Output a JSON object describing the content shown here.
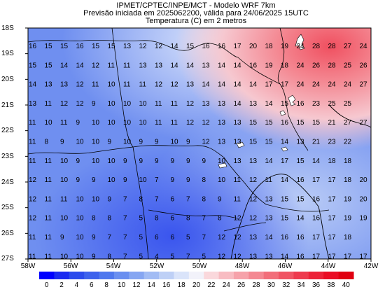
{
  "header": {
    "line1": "IPMET/CPTEC/INPE/MCT - Modelo WRF 7km",
    "line2": "Previsão iniciada em 2025062200, válida para 24/06/2025 15UTC",
    "line3": "Temperatura (C) em 2 metros"
  },
  "axes": {
    "lat_labels": [
      "18S",
      "19S",
      "20S",
      "21S",
      "22S",
      "23S",
      "24S",
      "25S",
      "26S",
      "27S"
    ],
    "lon_labels": [
      "58W",
      "56W",
      "54W",
      "52W",
      "50W",
      "48W",
      "46W",
      "44W",
      "42W"
    ]
  },
  "colorbar": {
    "ticks": [
      "0",
      "2",
      "4",
      "6",
      "8",
      "10",
      "12",
      "14",
      "16",
      "18",
      "20",
      "22",
      "24",
      "26",
      "28",
      "30",
      "32",
      "34",
      "36",
      "38",
      "40"
    ],
    "colors": [
      "#0000ff",
      "#1a2af0",
      "#2b4bec",
      "#3d62ec",
      "#4f78ee",
      "#6a8ff0",
      "#86a6f2",
      "#a2bcf4",
      "#bed0f6",
      "#dae4fa",
      "#f2f2fa",
      "#fad8dc",
      "#f8bcc2",
      "#f6a2aa",
      "#f48892",
      "#f26e7a",
      "#f05464",
      "#ee3a4e",
      "#ec2238",
      "#ea0c24",
      "#e00010"
    ]
  },
  "grid_values": [
    [
      "16",
      "15",
      "15",
      "16",
      "15",
      "15",
      "13",
      "12",
      "12",
      "14",
      "15",
      "16",
      "16",
      "17",
      "20",
      "18",
      "19",
      "24",
      "28",
      "28",
      "27",
      "24"
    ],
    [
      "15",
      "15",
      "14",
      "14",
      "12",
      "11",
      "11",
      "13",
      "13",
      "14",
      "14",
      "13",
      "14",
      "14",
      "16",
      "19",
      "18",
      "24",
      "26",
      "28",
      "25",
      "26"
    ],
    [
      "14",
      "13",
      "13",
      "12",
      "11",
      "10",
      "11",
      "11",
      "12",
      "12",
      "13",
      "14",
      "14",
      "14",
      "14",
      "17",
      "17",
      "24",
      "24",
      "24",
      "24",
      "27"
    ],
    [
      "13",
      "11",
      "12",
      "12",
      "9",
      "10",
      "10",
      "10",
      "11",
      "11",
      "12",
      "13",
      "13",
      "14",
      "13",
      "14",
      "15",
      "16",
      "23",
      "25",
      "25"
    ],
    [
      "11",
      "10",
      "11",
      "9",
      "10",
      "10",
      "10",
      "10",
      "11",
      "11",
      "12",
      "12",
      "13",
      "13",
      "15",
      "15",
      "16",
      "15",
      "15",
      "21",
      "27",
      "27"
    ],
    [
      "11",
      "8",
      "9",
      "10",
      "10",
      "9",
      "10",
      "9",
      "9",
      "10",
      "9",
      "12",
      "13",
      "13",
      "15",
      "15",
      "14",
      "13",
      "21",
      "23",
      "22"
    ],
    [
      "11",
      "11",
      "10",
      "9",
      "10",
      "10",
      "9",
      "9",
      "9",
      "9",
      "9",
      "9",
      "10",
      "13",
      "13",
      "14",
      "17",
      "15",
      "14",
      "18",
      "18"
    ],
    [
      "12",
      "11",
      "10",
      "9",
      "9",
      "10",
      "9",
      "10",
      "7",
      "9",
      "9",
      "8",
      "10",
      "11",
      "12",
      "11",
      "14",
      "16",
      "17",
      "17",
      "18",
      "20"
    ],
    [
      "12",
      "11",
      "11",
      "10",
      "10",
      "9",
      "7",
      "8",
      "7",
      "6",
      "7",
      "8",
      "9",
      "11",
      "12",
      "13",
      "15",
      "15",
      "16",
      "17",
      "19",
      "20"
    ],
    [
      "12",
      "11",
      "10",
      "10",
      "8",
      "8",
      "7",
      "5",
      "8",
      "6",
      "8",
      "7",
      "8",
      "12",
      "12",
      "13",
      "15",
      "14",
      "16",
      "17",
      "19",
      "19"
    ],
    [
      "11",
      "11",
      "9",
      "10",
      "9",
      "7",
      "7",
      "5",
      "6",
      "6",
      "5",
      "7",
      "12",
      "12",
      "13",
      "14",
      "16",
      "16",
      "17",
      "17",
      "18"
    ],
    [
      "11",
      "11",
      "10",
      "10",
      "9",
      "8",
      "7",
      "5",
      "4",
      "5",
      "7",
      "5",
      "12",
      "12",
      "13",
      "13",
      "14",
      "16",
      "17",
      "17",
      "17",
      "17"
    ]
  ]
}
